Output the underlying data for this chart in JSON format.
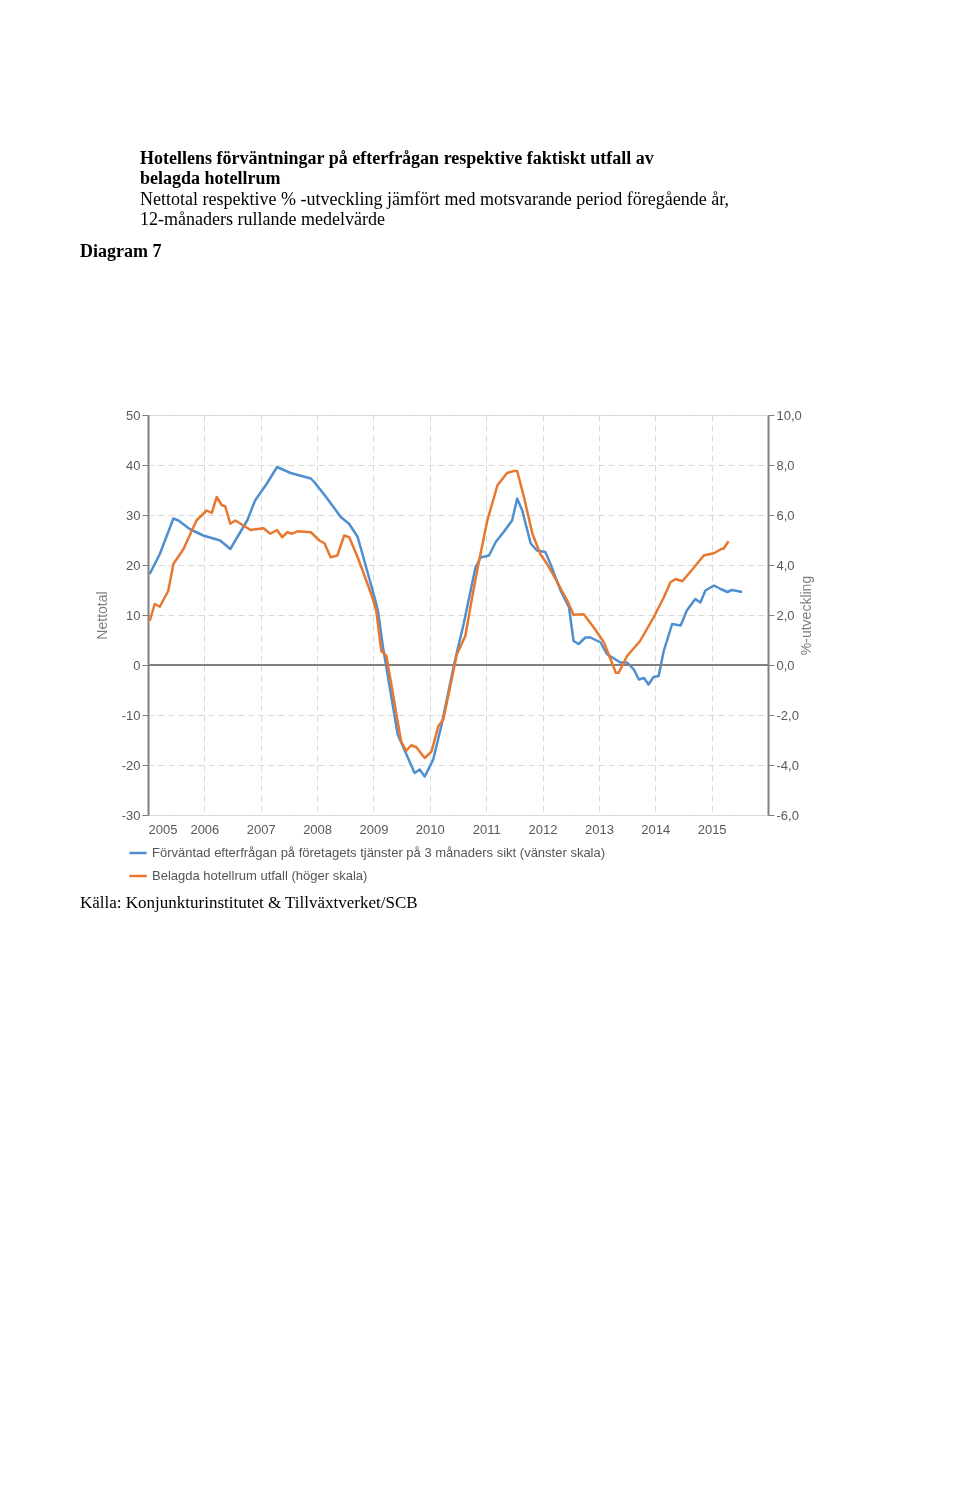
{
  "chart_data": {
    "type": "line",
    "title": "Hotellens förväntningar på efterfrågan respektive faktiskt utfall av belagda hotellrum",
    "subtitle": "Nettotal respektive % -utveckling jämfört med motsvarande period föregående år, 12-månaders rullande medelvärde",
    "ylabel": "Nettotal",
    "y2label": "%-utveckling",
    "annotations": [
      "Diagram 7",
      "Källa: Konjunkturinstitutet & Tillväxtverket/SCB"
    ],
    "xlim": [
      2005,
      2016
    ],
    "xticks": [
      2005,
      2006,
      2007,
      2008,
      2009,
      2010,
      2011,
      2012,
      2013,
      2014,
      2015
    ],
    "ylim": [
      -30,
      50
    ],
    "yticks": [
      -30,
      -20,
      -10,
      0,
      10,
      20,
      30,
      40,
      50
    ],
    "y2lim": [
      -6,
      10
    ],
    "y2ticks": [
      {
        "value": -6,
        "label": "-6,0"
      },
      {
        "value": -4,
        "label": "-4,0"
      },
      {
        "value": -2,
        "label": "-2,0"
      },
      {
        "value": 0,
        "label": "0,0"
      },
      {
        "value": 2,
        "label": "2,0"
      },
      {
        "value": 4,
        "label": "4,0"
      },
      {
        "value": 6,
        "label": "6,0"
      },
      {
        "value": 8,
        "label": "8,0"
      },
      {
        "value": 10,
        "label": "10,0"
      }
    ],
    "grid": true,
    "legend": "bottom",
    "marker": "none",
    "line_style": "solid",
    "ref_lines": [
      {
        "axis": "y",
        "value": 0,
        "color": "#808080"
      }
    ],
    "series": [
      {
        "name": "Förväntad efterfrågan på företagets tjänster på 3 månaders sikt (vänster skala)",
        "color": "#4f8fcf",
        "axis": "y",
        "x": [
          2005.03,
          2005.21,
          2005.45,
          2005.54,
          2005.74,
          2005.98,
          2006.28,
          2006.46,
          2006.76,
          2006.9,
          2007.11,
          2007.29,
          2007.53,
          2007.89,
          2007.95,
          2008.18,
          2008.42,
          2008.57,
          2008.72,
          2009.02,
          2009.08,
          2009.17,
          2009.43,
          2009.73,
          2009.82,
          2009.91,
          2010.06,
          2010.21,
          2010.43,
          2010.6,
          2010.81,
          2010.9,
          2011.05,
          2011.17,
          2011.31,
          2011.46,
          2011.55,
          2011.64,
          2011.79,
          2011.9,
          2012.05,
          2012.14,
          2012.32,
          2012.47,
          2012.55,
          2012.64,
          2012.76,
          2012.85,
          2013.03,
          2013.14,
          2013.38,
          2013.5,
          2013.62,
          2013.71,
          2013.8,
          2013.88,
          2013.97,
          2014.06,
          2014.15,
          2014.3,
          2014.45,
          2014.56,
          2014.71,
          2014.8,
          2014.89,
          2015.04,
          2015.16,
          2015.28,
          2015.36,
          2015.54
        ],
        "values": [
          18.2,
          22.2,
          29.3,
          28.9,
          27.2,
          25.9,
          24.9,
          23.2,
          28.9,
          32.9,
          36.3,
          39.6,
          38.4,
          37.3,
          36.6,
          33.3,
          29.6,
          28.2,
          25.6,
          13.5,
          10.8,
          3.5,
          -13.9,
          -21.6,
          -20.9,
          -22.3,
          -18.9,
          -11.9,
          0.1,
          8.2,
          19.5,
          21.5,
          21.9,
          24.6,
          26.6,
          28.9,
          33.3,
          30.9,
          24.3,
          22.9,
          22.6,
          20.2,
          14.9,
          11.5,
          4.8,
          4.2,
          5.5,
          5.5,
          4.5,
          2.2,
          0.5,
          0.5,
          -0.9,
          -2.9,
          -2.6,
          -3.9,
          -2.4,
          -2.2,
          2.8,
          8.2,
          7.9,
          10.9,
          13.2,
          12.5,
          14.9,
          15.9,
          15.2,
          14.6,
          15.0,
          14.6
        ]
      },
      {
        "name": "Belagda hotellrum utfall (höger skala)",
        "color": "#e8782f",
        "axis": "y2",
        "x": [
          2005.03,
          2005.12,
          2005.21,
          2005.36,
          2005.45,
          2005.63,
          2005.86,
          2006.04,
          2006.13,
          2006.22,
          2006.31,
          2006.37,
          2006.46,
          2006.55,
          2006.82,
          2007.05,
          2007.17,
          2007.29,
          2007.38,
          2007.47,
          2007.56,
          2007.65,
          2007.89,
          2008.04,
          2008.13,
          2008.24,
          2008.36,
          2008.48,
          2008.57,
          2008.72,
          2008.96,
          2009.05,
          2009.14,
          2009.23,
          2009.49,
          2009.58,
          2009.67,
          2009.76,
          2009.91,
          2010.03,
          2010.15,
          2010.24,
          2010.48,
          2010.63,
          2010.74,
          2010.84,
          2011.02,
          2011.2,
          2011.37,
          2011.49,
          2011.55,
          2011.67,
          2011.82,
          2011.96,
          2012.08,
          2012.23,
          2012.44,
          2012.55,
          2012.73,
          2012.91,
          2013.09,
          2013.3,
          2013.35,
          2013.5,
          2013.73,
          2013.97,
          2014.15,
          2014.27,
          2014.36,
          2014.48,
          2014.69,
          2014.86,
          2015.04,
          2015.18,
          2015.21,
          2015.3
        ],
        "values": [
          1.76,
          2.44,
          2.33,
          2.97,
          4.04,
          4.64,
          5.78,
          6.18,
          6.08,
          6.72,
          6.39,
          6.35,
          5.65,
          5.78,
          5.4,
          5.47,
          5.25,
          5.4,
          5.11,
          5.31,
          5.25,
          5.35,
          5.31,
          4.98,
          4.87,
          4.31,
          4.38,
          5.18,
          5.11,
          4.31,
          2.84,
          2.17,
          0.56,
          0.36,
          -3.05,
          -3.43,
          -3.21,
          -3.29,
          -3.72,
          -3.46,
          -2.45,
          -2.18,
          0.43,
          1.16,
          2.57,
          3.78,
          5.78,
          7.19,
          7.68,
          7.76,
          7.76,
          6.72,
          5.25,
          4.44,
          4.04,
          3.44,
          2.57,
          2.01,
          2.03,
          1.5,
          0.9,
          -0.31,
          -0.31,
          0.36,
          0.96,
          1.9,
          2.7,
          3.31,
          3.44,
          3.35,
          3.91,
          4.38,
          4.47,
          4.65,
          4.65,
          4.95
        ]
      }
    ]
  }
}
